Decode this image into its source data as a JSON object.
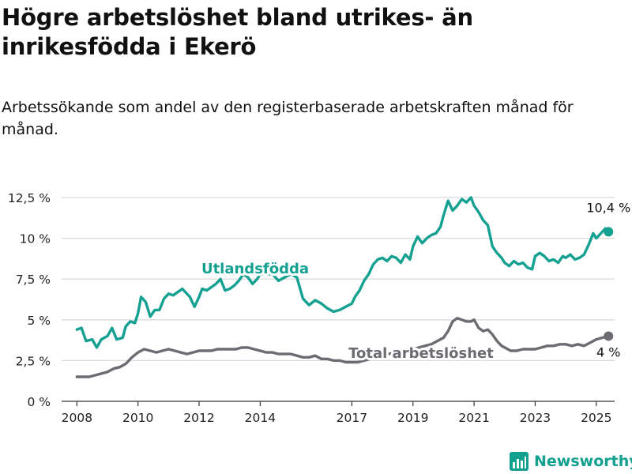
{
  "title": "Högre arbetslöshet bland utrikes- än inrikesfödda i Ekerö",
  "subtitle": "Arbetssökande som andel av den registerbaserade arbetskraften månad för månad.",
  "brand": "Newsworthy",
  "colors": {
    "foreign": "#15a192",
    "total": "#6d6b71",
    "grid": "#dcdcdc",
    "axis": "#333333",
    "brand": "#12a08f"
  },
  "chart_data": {
    "type": "line",
    "y_tick_labels": [
      "0 %",
      "2,5 %",
      "5 %",
      "7,5 %",
      "10 %",
      "12,5 %"
    ],
    "y_ticks": [
      0,
      2.5,
      5,
      7.5,
      10,
      12.5
    ],
    "ylim": [
      0,
      12.5
    ],
    "x_tick_labels": [
      "2008",
      "2010",
      "2012",
      "2014",
      "2017",
      "2019",
      "2021",
      "2023",
      "2025"
    ],
    "x_ticks": [
      2008,
      2010,
      2012,
      2014,
      2017,
      2019,
      2021,
      2023,
      2025
    ],
    "xlim": [
      2007.5,
      2025.6
    ],
    "grid": "horizontal",
    "series": [
      {
        "name": "Utlandsfödda",
        "end_label": "10,4 %",
        "x": [
          2008.0,
          2008.15,
          2008.3,
          2008.5,
          2008.65,
          2008.8,
          2009.0,
          2009.15,
          2009.3,
          2009.5,
          2009.6,
          2009.75,
          2009.9,
          2010.0,
          2010.1,
          2010.25,
          2010.4,
          2010.55,
          2010.7,
          2010.85,
          2011.0,
          2011.15,
          2011.3,
          2011.45,
          2011.55,
          2011.7,
          2011.85,
          2012.0,
          2012.1,
          2012.25,
          2012.4,
          2012.55,
          2012.7,
          2012.85,
          2013.0,
          2013.15,
          2013.3,
          2013.45,
          2013.6,
          2013.75,
          2013.9,
          2014.0,
          2014.2,
          2014.4,
          2014.6,
          2014.8,
          2015.0,
          2015.2,
          2015.4,
          2015.6,
          2015.8,
          2016.0,
          2016.2,
          2016.4,
          2016.6,
          2016.8,
          2017.0,
          2017.1,
          2017.25,
          2017.4,
          2017.55,
          2017.7,
          2017.85,
          2018.0,
          2018.15,
          2018.3,
          2018.45,
          2018.6,
          2018.75,
          2018.9,
          2019.0,
          2019.15,
          2019.3,
          2019.45,
          2019.6,
          2019.75,
          2019.9,
          2020.0,
          2020.15,
          2020.3,
          2020.45,
          2020.6,
          2020.75,
          2020.9,
          2021.0,
          2021.15,
          2021.3,
          2021.45,
          2021.6,
          2021.75,
          2021.9,
          2022.0,
          2022.15,
          2022.3,
          2022.45,
          2022.6,
          2022.75,
          2022.9,
          2023.0,
          2023.15,
          2023.3,
          2023.45,
          2023.6,
          2023.75,
          2023.9,
          2024.0,
          2024.15,
          2024.3,
          2024.45,
          2024.6,
          2024.75,
          2024.9,
          2025.0,
          2025.15,
          2025.3,
          2025.4
        ],
        "values": [
          4.4,
          4.5,
          3.7,
          3.8,
          3.3,
          3.8,
          4.0,
          4.5,
          3.8,
          3.9,
          4.6,
          4.9,
          4.8,
          5.4,
          6.4,
          6.1,
          5.2,
          5.6,
          5.6,
          6.3,
          6.6,
          6.5,
          6.7,
          6.9,
          6.7,
          6.4,
          5.8,
          6.4,
          6.9,
          6.8,
          7.0,
          7.2,
          7.5,
          6.8,
          6.9,
          7.1,
          7.4,
          7.8,
          7.6,
          7.2,
          7.5,
          7.8,
          7.8,
          7.8,
          7.4,
          7.6,
          7.8,
          7.6,
          6.3,
          5.9,
          6.2,
          6.0,
          5.7,
          5.5,
          5.6,
          5.8,
          6.0,
          6.4,
          6.8,
          7.4,
          7.8,
          8.4,
          8.7,
          8.8,
          8.6,
          8.9,
          8.8,
          8.5,
          9.0,
          8.7,
          9.5,
          10.1,
          9.7,
          10.0,
          10.2,
          10.3,
          10.7,
          11.4,
          12.3,
          11.7,
          12.0,
          12.4,
          12.2,
          12.5,
          12.0,
          11.6,
          11.1,
          10.8,
          9.5,
          9.1,
          8.8,
          8.5,
          8.3,
          8.6,
          8.4,
          8.5,
          8.2,
          8.1,
          8.9,
          9.1,
          8.9,
          8.6,
          8.7,
          8.5,
          8.9,
          8.8,
          9.0,
          8.7,
          8.8,
          9.0,
          9.6,
          10.3,
          10.0,
          10.3,
          10.6,
          10.4
        ]
      },
      {
        "name": "Total arbetslöshet",
        "end_label": "4 %",
        "x": [
          2008.0,
          2008.2,
          2008.4,
          2008.6,
          2008.8,
          2009.0,
          2009.2,
          2009.4,
          2009.6,
          2009.8,
          2010.0,
          2010.2,
          2010.4,
          2010.6,
          2010.8,
          2011.0,
          2011.2,
          2011.4,
          2011.6,
          2011.8,
          2012.0,
          2012.2,
          2012.4,
          2012.6,
          2012.8,
          2013.0,
          2013.2,
          2013.4,
          2013.6,
          2013.8,
          2014.0,
          2014.2,
          2014.4,
          2014.6,
          2014.8,
          2015.0,
          2015.2,
          2015.4,
          2015.6,
          2015.8,
          2016.0,
          2016.2,
          2016.4,
          2016.6,
          2016.8,
          2017.0,
          2017.2,
          2017.4,
          2017.6,
          2017.8,
          2018.0,
          2018.2,
          2018.4,
          2018.6,
          2018.8,
          2019.0,
          2019.2,
          2019.4,
          2019.6,
          2019.8,
          2020.0,
          2020.15,
          2020.3,
          2020.45,
          2020.6,
          2020.75,
          2020.9,
          2021.0,
          2021.15,
          2021.3,
          2021.45,
          2021.6,
          2021.75,
          2021.9,
          2022.0,
          2022.2,
          2022.4,
          2022.6,
          2022.8,
          2023.0,
          2023.2,
          2023.4,
          2023.6,
          2023.8,
          2024.0,
          2024.2,
          2024.4,
          2024.6,
          2024.8,
          2025.0,
          2025.2,
          2025.4
        ],
        "values": [
          1.5,
          1.5,
          1.5,
          1.6,
          1.7,
          1.8,
          2.0,
          2.1,
          2.3,
          2.7,
          3.0,
          3.2,
          3.1,
          3.0,
          3.1,
          3.2,
          3.1,
          3.0,
          2.9,
          3.0,
          3.1,
          3.1,
          3.1,
          3.2,
          3.2,
          3.2,
          3.2,
          3.3,
          3.3,
          3.2,
          3.1,
          3.0,
          3.0,
          2.9,
          2.9,
          2.9,
          2.8,
          2.7,
          2.7,
          2.8,
          2.6,
          2.6,
          2.5,
          2.5,
          2.4,
          2.4,
          2.4,
          2.5,
          2.6,
          2.7,
          2.8,
          2.9,
          3.0,
          3.0,
          3.1,
          3.2,
          3.3,
          3.4,
          3.5,
          3.7,
          3.9,
          4.3,
          4.9,
          5.1,
          5.0,
          4.9,
          4.9,
          5.0,
          4.5,
          4.3,
          4.4,
          4.1,
          3.7,
          3.4,
          3.3,
          3.1,
          3.1,
          3.2,
          3.2,
          3.2,
          3.3,
          3.4,
          3.4,
          3.5,
          3.5,
          3.4,
          3.5,
          3.4,
          3.6,
          3.8,
          3.9,
          4.0
        ]
      }
    ],
    "annotations": [
      "Utlandsfödda",
      "Total arbetslöshet"
    ]
  }
}
